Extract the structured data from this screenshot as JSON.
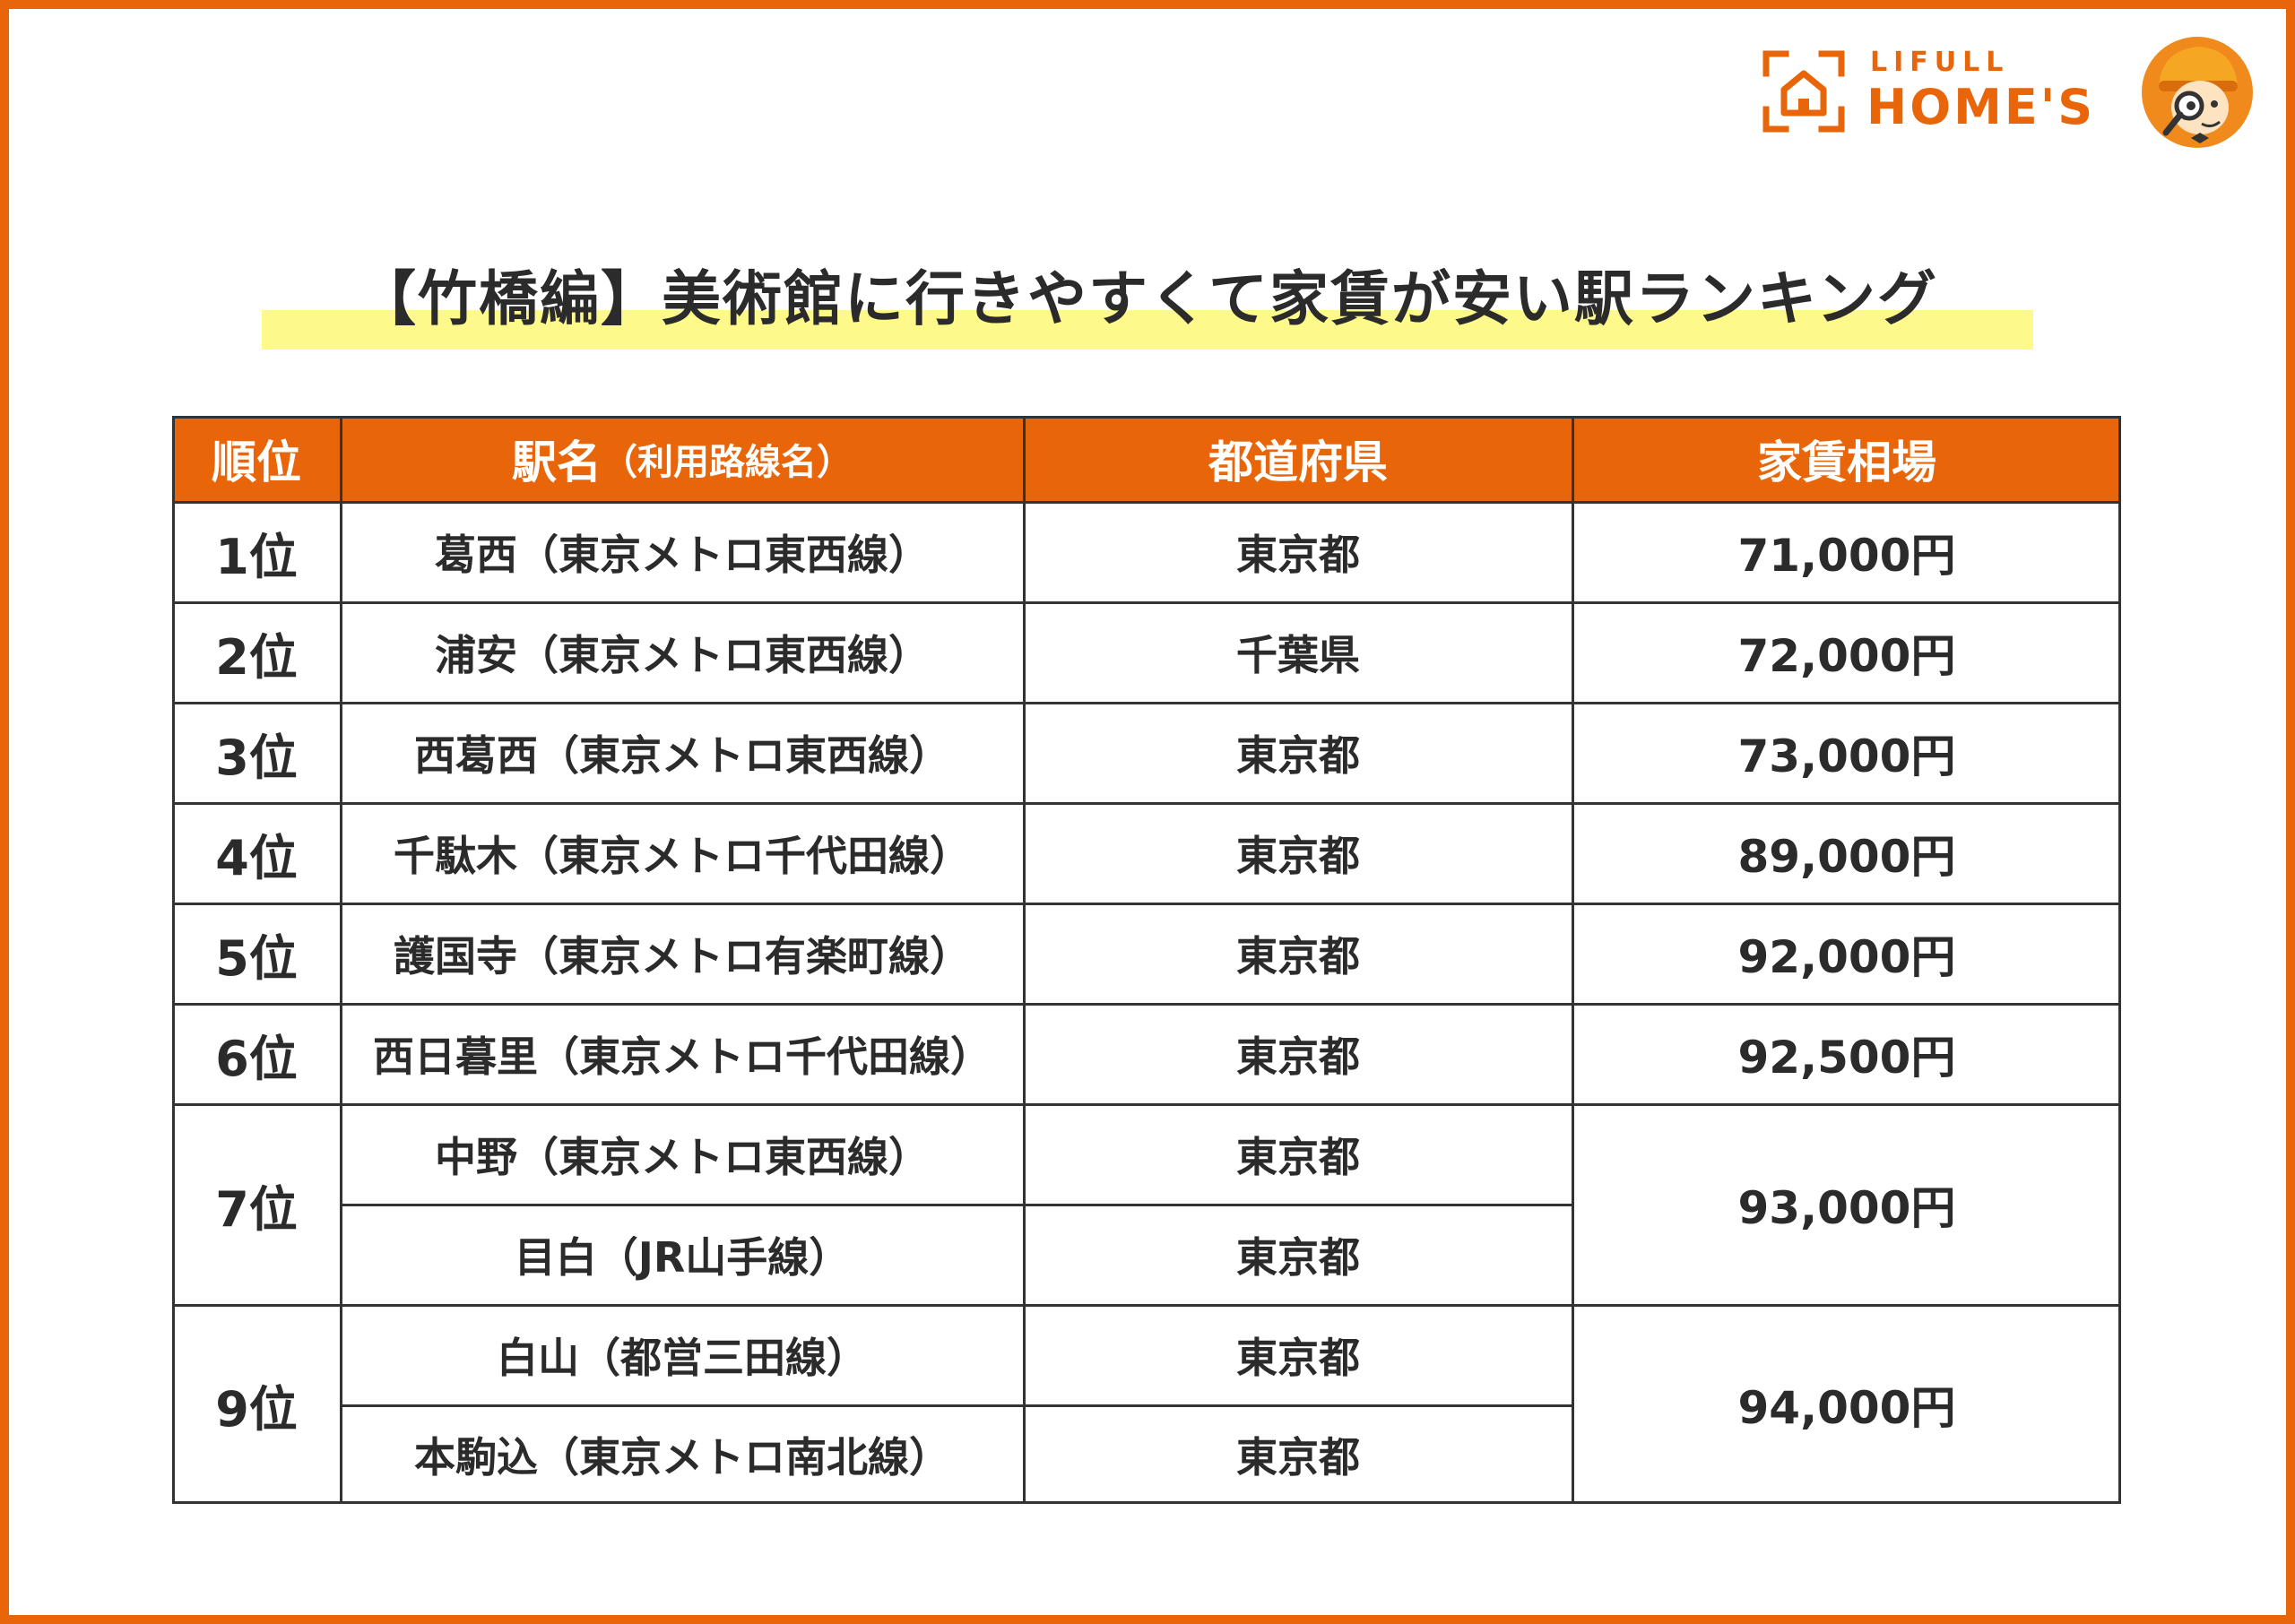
{
  "logo": {
    "line1": "LIFULL",
    "line2": "HOME'S",
    "mark_icon": "house-bracket-icon",
    "mascot_icon": "detective-mascot-icon",
    "brand_color": "#e8650a"
  },
  "title": "【竹橋編】美術館に行きやすくて家賃が安い駅ランキング",
  "colors": {
    "accent": "#e8650a",
    "highlight": "#fdf98a",
    "text": "#2b2b2b",
    "grid": "#333333"
  },
  "chart_data": {
    "type": "table",
    "columns": {
      "rank": "順位",
      "station_main": "駅名",
      "station_sub": "（利用路線名）",
      "prefecture": "都道府県",
      "rent": "家賃相場"
    },
    "rows": [
      {
        "rank": "1位",
        "station": "葛西（東京メトロ東西線）",
        "prefecture": "東京都",
        "rent": "71,000円"
      },
      {
        "rank": "2位",
        "station": "浦安（東京メトロ東西線）",
        "prefecture": "千葉県",
        "rent": "72,000円"
      },
      {
        "rank": "3位",
        "station": "西葛西（東京メトロ東西線）",
        "prefecture": "東京都",
        "rent": "73,000円"
      },
      {
        "rank": "4位",
        "station": "千駄木（東京メトロ千代田線）",
        "prefecture": "東京都",
        "rent": "89,000円"
      },
      {
        "rank": "5位",
        "station": "護国寺（東京メトロ有楽町線）",
        "prefecture": "東京都",
        "rent": "92,000円"
      },
      {
        "rank": "6位",
        "station": "西日暮里（東京メトロ千代田線）",
        "prefecture": "東京都",
        "rent": "92,500円"
      },
      {
        "rank": "7位",
        "station": "中野（東京メトロ東西線）",
        "prefecture": "東京都",
        "rent": "93,000円"
      },
      {
        "rank": "7位",
        "station": "目白（JR山手線）",
        "prefecture": "東京都",
        "rent": "93,000円"
      },
      {
        "rank": "9位",
        "station": "白山（都営三田線）",
        "prefecture": "東京都",
        "rent": "94,000円"
      },
      {
        "rank": "9位",
        "station": "本駒込（東京メトロ南北線）",
        "prefecture": "東京都",
        "rent": "94,000円"
      }
    ]
  }
}
